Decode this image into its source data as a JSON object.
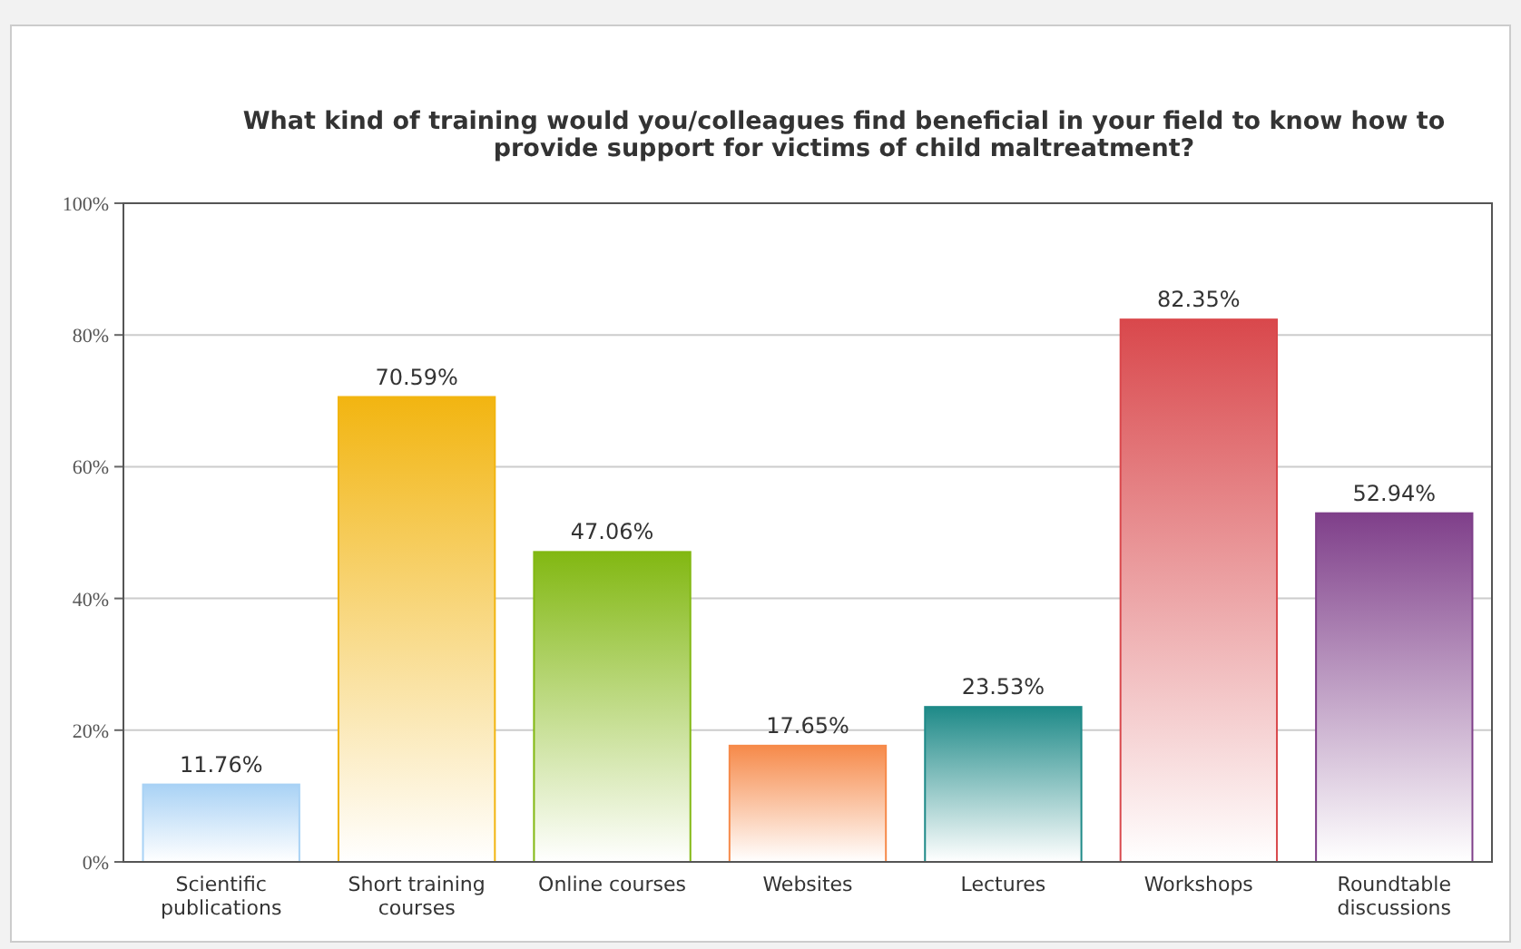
{
  "chart_data": {
    "type": "bar",
    "title": "What kind of training would you/colleagues find beneficial in your field to know how to provide support for victims of child maltreatment?",
    "categories": [
      "Scientific publications",
      "Short training courses",
      "Online courses",
      "Websites",
      "Lectures",
      "Workshops",
      "Roundtable discussions"
    ],
    "values": [
      11.76,
      70.59,
      47.06,
      17.65,
      23.53,
      82.35,
      52.94
    ],
    "colors": [
      "#a9d2f5",
      "#f2b511",
      "#82b812",
      "#f68a4a",
      "#1e8a88",
      "#d9484c",
      "#7f3f8a"
    ],
    "value_labels": [
      "11.76%",
      "70.59%",
      "47.06%",
      "17.65%",
      "23.53%",
      "82.35%",
      "52.94%"
    ],
    "ylim": [
      0,
      100
    ],
    "yticks": [
      {
        "value": 0,
        "label": "0%"
      },
      {
        "value": 20,
        "label": "20%"
      },
      {
        "value": 40,
        "label": "40%"
      },
      {
        "value": 60,
        "label": "60%"
      },
      {
        "value": 80,
        "label": "80%"
      },
      {
        "value": 100,
        "label": "100%"
      }
    ],
    "grid": true
  }
}
